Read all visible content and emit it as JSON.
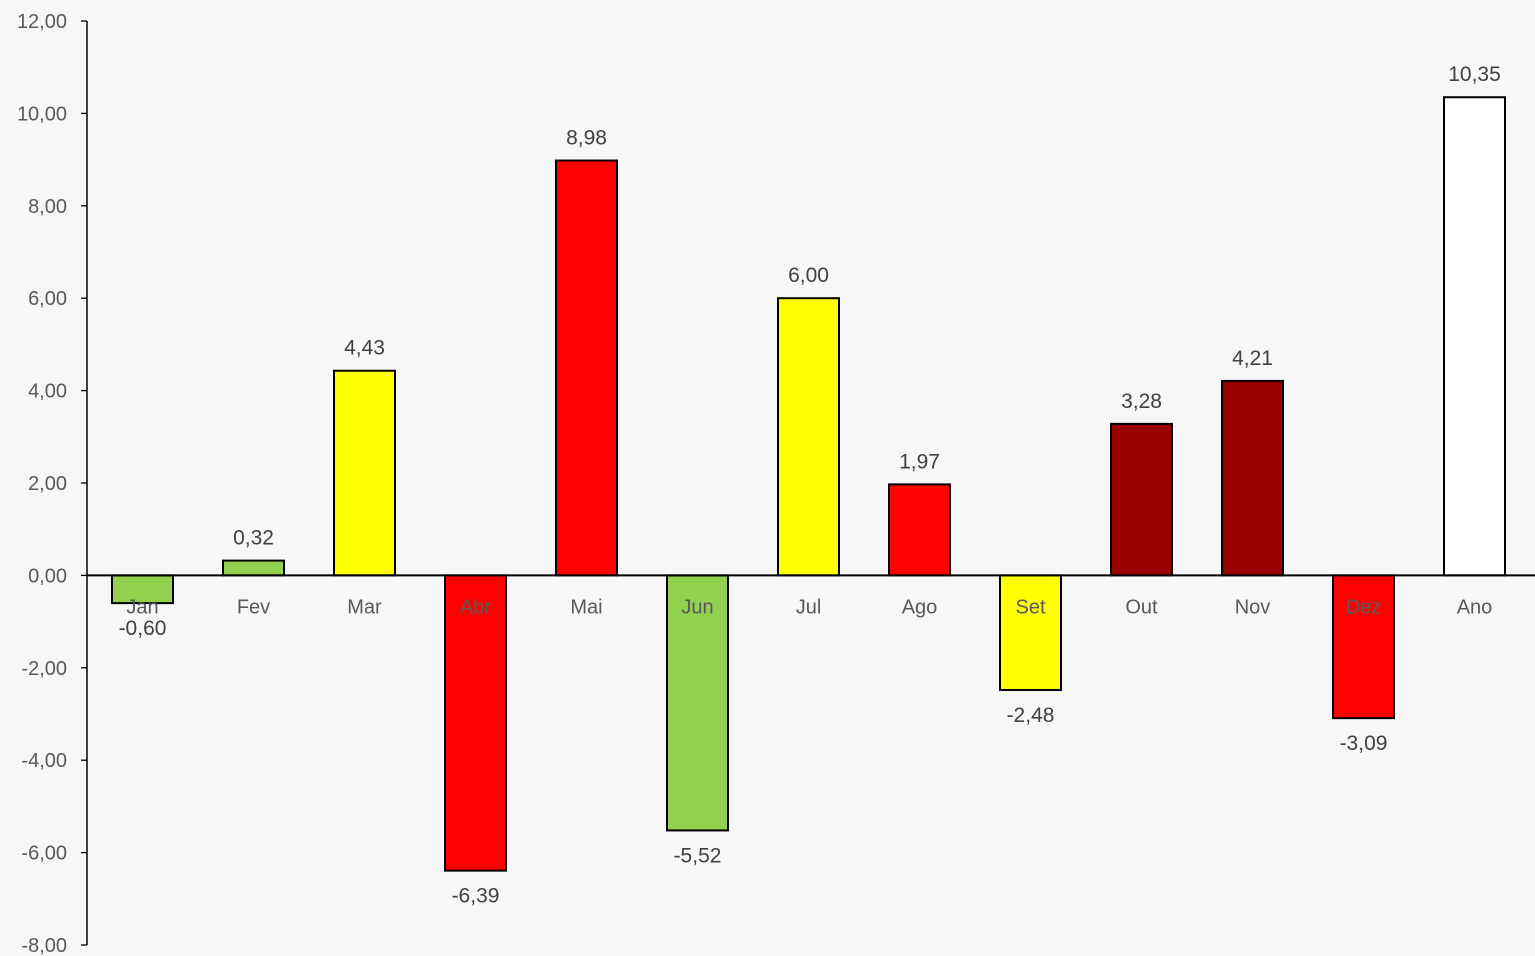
{
  "chart_data": {
    "type": "bar",
    "title": "",
    "xlabel": "",
    "ylabel": "",
    "ylim": [
      -8,
      12
    ],
    "y_ticks": [
      "12,00",
      "10,00",
      "8,00",
      "6,00",
      "4,00",
      "2,00",
      "0,00",
      "-2,00",
      "-4,00",
      "-6,00",
      "-8,00"
    ],
    "y_tick_values": [
      12,
      10,
      8,
      6,
      4,
      2,
      0,
      -2,
      -4,
      -6,
      -8
    ],
    "grid": false,
    "legend": "none",
    "categories": [
      "Jan",
      "Fev",
      "Mar",
      "Abr",
      "Mai",
      "Jun",
      "Jul",
      "Ago",
      "Set",
      "Out",
      "Nov",
      "Dez",
      "Ano"
    ],
    "values": [
      -0.6,
      0.32,
      4.43,
      -6.39,
      8.98,
      -5.52,
      6.0,
      1.97,
      -2.48,
      3.28,
      4.21,
      -3.09,
      10.35
    ],
    "value_labels": [
      "-0,60",
      "0,32",
      "4,43",
      "-6,39",
      "8,98",
      "-5,52",
      "6,00",
      "1,97",
      "-2,48",
      "3,28",
      "4,21",
      "-3,09",
      "10,35"
    ],
    "bar_colors": [
      "#92d050",
      "#92d050",
      "#ffff00",
      "#ff0000",
      "#ff0000",
      "#92d050",
      "#ffff00",
      "#ff0000",
      "#ffff00",
      "#990000",
      "#990000",
      "#ff0000",
      "#ffffff"
    ],
    "bar_border_color": "#000000",
    "background_color": "#f7f7f7"
  }
}
